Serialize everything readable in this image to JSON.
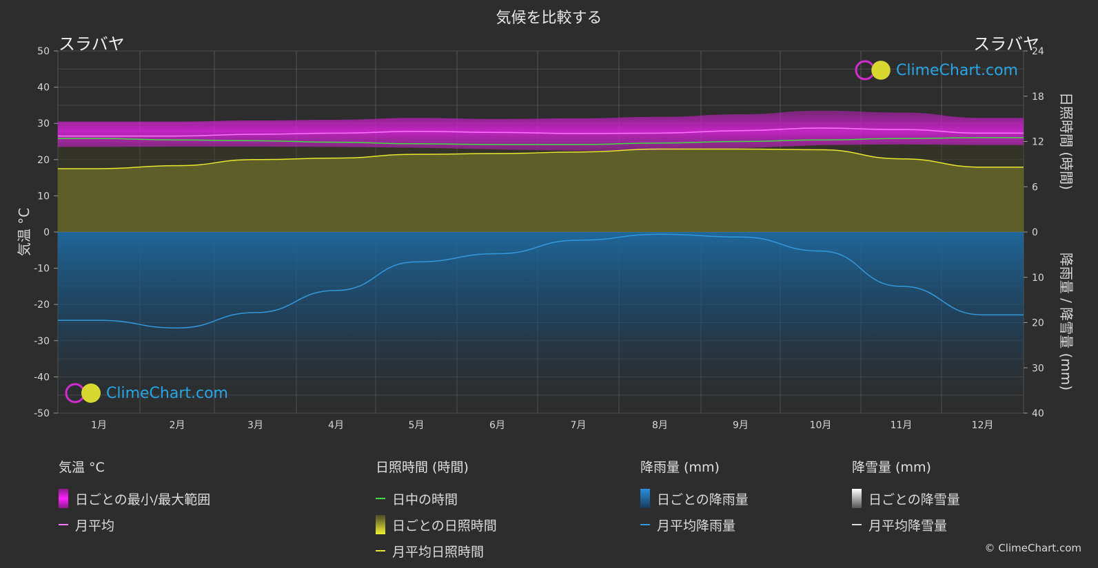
{
  "title": "気候を比較する",
  "location_left": "スラバヤ",
  "location_right": "スラバヤ",
  "logo_text": "ClimeChart.com",
  "copyright": "© ClimeChart.com",
  "chart_data": {
    "type": "area",
    "categories": [
      "1月",
      "2月",
      "3月",
      "4月",
      "5月",
      "6月",
      "7月",
      "8月",
      "9月",
      "10月",
      "11月",
      "12月"
    ],
    "y_left": {
      "label": "気温 °C",
      "ticks": [
        50,
        40,
        30,
        20,
        10,
        0,
        -10,
        -20,
        -30,
        -40,
        -50
      ],
      "range": [
        -50,
        50
      ]
    },
    "y_right_top": {
      "label": "日照時間 (時間)",
      "ticks": [
        24,
        18,
        12,
        6,
        0
      ],
      "range": [
        0,
        24
      ]
    },
    "y_right_bottom": {
      "label": "降雨量 / 降雪量 (mm)",
      "ticks": [
        0,
        10,
        20,
        30,
        40
      ],
      "range": [
        0,
        40
      ]
    },
    "series": [
      {
        "name": "月平均",
        "unit": "°C",
        "color": "#ff77ff",
        "values": [
          26.5,
          26.5,
          27.0,
          27.3,
          27.8,
          27.5,
          27.2,
          27.3,
          28.0,
          28.7,
          28.3,
          27.3
        ]
      },
      {
        "name": "日中の時間",
        "unit": "時間",
        "color": "#44dd44",
        "values": [
          12.4,
          12.2,
          12.1,
          11.9,
          11.7,
          11.6,
          11.6,
          11.8,
          12.0,
          12.2,
          12.4,
          12.5
        ]
      },
      {
        "name": "月平均日照時間",
        "unit": "時間",
        "color": "#e8e830",
        "values": [
          8.4,
          8.8,
          9.6,
          9.8,
          10.3,
          10.4,
          10.6,
          11.0,
          11.0,
          10.9,
          9.7,
          8.6
        ]
      },
      {
        "name": "月平均降雨量",
        "unit": "mm",
        "color": "#3399dd",
        "values": [
          19.5,
          21.2,
          17.8,
          12.9,
          6.6,
          4.8,
          1.8,
          0.5,
          1.1,
          4.2,
          12.0,
          18.3
        ]
      }
    ],
    "temp_range": {
      "name": "日ごとの最小/最大範囲",
      "min": [
        23.5,
        23.6,
        23.6,
        23.5,
        23.3,
        22.8,
        22.4,
        22.6,
        23.1,
        24.0,
        24.2,
        24.0
      ],
      "max": [
        30.5,
        30.5,
        30.8,
        31.0,
        31.5,
        31.2,
        31.4,
        31.8,
        32.5,
        33.5,
        33.0,
        31.5
      ]
    }
  },
  "legend": {
    "temperature": {
      "header": "気温 °C",
      "items": [
        "日ごとの最小/最大範囲",
        "月平均"
      ]
    },
    "sunshine": {
      "header": "日照時間 (時間)",
      "items": [
        "日中の時間",
        "日ごとの日照時間",
        "月平均日照時間"
      ]
    },
    "rain": {
      "header": "降雨量 (mm)",
      "items": [
        "日ごとの降雨量",
        "月平均降雨量"
      ]
    },
    "snow": {
      "header": "降雪量 (mm)",
      "items": [
        "日ごとの降雪量",
        "月平均降雪量"
      ]
    }
  },
  "colors": {
    "background": "#2d2d2d",
    "temp_range": "#cc22cc",
    "sunshine_fill": "#9a9a30",
    "rain_fill": "#1e5a85",
    "grid": "#555555"
  }
}
